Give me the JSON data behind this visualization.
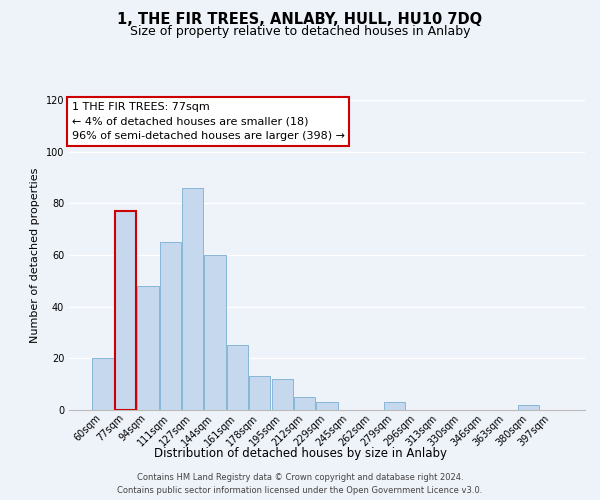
{
  "title": "1, THE FIR TREES, ANLABY, HULL, HU10 7DQ",
  "subtitle": "Size of property relative to detached houses in Anlaby",
  "xlabel": "Distribution of detached houses by size in Anlaby",
  "ylabel": "Number of detached properties",
  "bin_labels": [
    "60sqm",
    "77sqm",
    "94sqm",
    "111sqm",
    "127sqm",
    "144sqm",
    "161sqm",
    "178sqm",
    "195sqm",
    "212sqm",
    "229sqm",
    "245sqm",
    "262sqm",
    "279sqm",
    "296sqm",
    "313sqm",
    "330sqm",
    "346sqm",
    "363sqm",
    "380sqm",
    "397sqm"
  ],
  "bar_heights": [
    20,
    77,
    48,
    65,
    86,
    60,
    25,
    13,
    12,
    5,
    3,
    0,
    0,
    3,
    0,
    0,
    0,
    0,
    0,
    2,
    0
  ],
  "bar_color": "#c5d8ed",
  "bar_edge_color": "#7aafd4",
  "highlight_bar_index": 1,
  "highlight_bar_edge_color": "#cc0000",
  "annotation_line1": "1 THE FIR TREES: 77sqm",
  "annotation_line2": "← 4% of detached houses are smaller (18)",
  "annotation_line3": "96% of semi-detached houses are larger (398) →",
  "annotation_box_edge_color": "#cc0000",
  "annotation_box_facecolor": "#ffffff",
  "ylim": [
    0,
    120
  ],
  "yticks": [
    0,
    20,
    40,
    60,
    80,
    100,
    120
  ],
  "footnote_line1": "Contains HM Land Registry data © Crown copyright and database right 2024.",
  "footnote_line2": "Contains public sector information licensed under the Open Government Licence v3.0.",
  "bg_color": "#eef2f9",
  "grid_color": "#ffffff",
  "title_fontsize": 10.5,
  "subtitle_fontsize": 9,
  "xlabel_fontsize": 8.5,
  "ylabel_fontsize": 8,
  "tick_fontsize": 7,
  "annot_fontsize": 8,
  "footnote_fontsize": 6
}
